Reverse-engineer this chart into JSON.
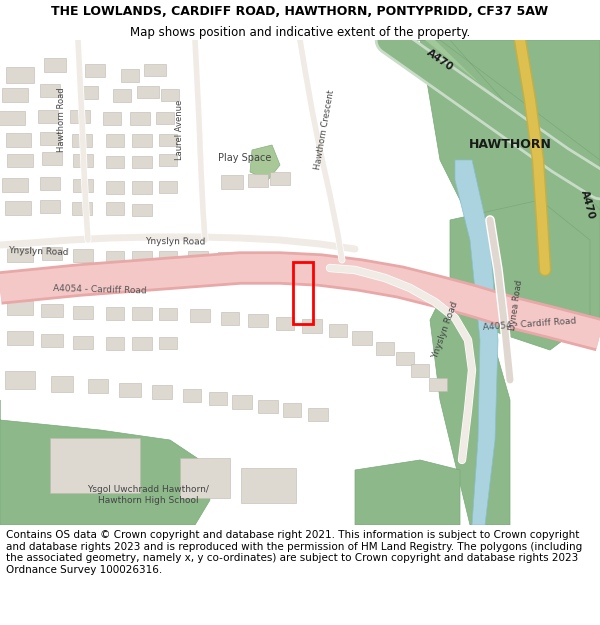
{
  "title_line1": "THE LOWLANDS, CARDIFF ROAD, HAWTHORN, PONTYPRIDD, CF37 5AW",
  "title_line2": "Map shows position and indicative extent of the property.",
  "footer_text": "Contains OS data © Crown copyright and database right 2021. This information is subject to Crown copyright and database rights 2023 and is reproduced with the permission of HM Land Registry. The polygons (including the associated geometry, namely x, y co-ordinates) are subject to Crown copyright and database rights 2023 Ordnance Survey 100026316.",
  "title_fontsize": 9.0,
  "subtitle_fontsize": 8.5,
  "footer_fontsize": 7.5,
  "title_color": "#000000",
  "footer_color": "#000000",
  "bg_color": "#ffffff",
  "map_bg": "#f2ede9",
  "fig_width": 6.0,
  "fig_height": 6.25
}
